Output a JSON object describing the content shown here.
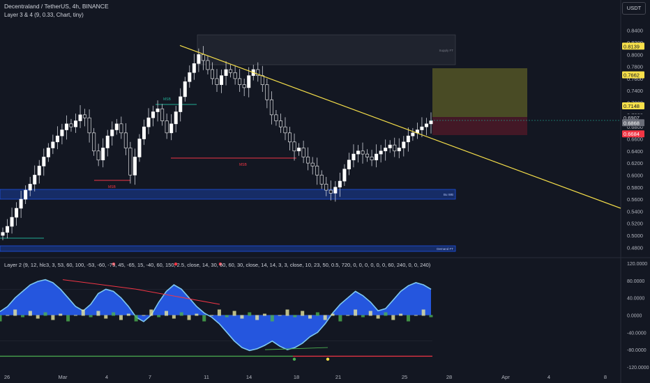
{
  "header": {
    "symbol_line": "Decentraland / TetherUS, 4h, BINANCE",
    "indicator_line": "Layer 3 & 4 (9, 0.33, Chart, tiny)",
    "currency_button": "USDT"
  },
  "lower_pane": {
    "label": "Layer 2 (9, 12, hlc3, 3, 53, 60, 100, -53, -60, -75, 45, -65, 15, -40, 60, 150, 2.5, close, 14, 30, 60, 60, 30, close, 14, 14, 3, 3, close, 10, 23, 50, 0.5, 720, 0, 0, 0, 0, 0, 0, 60, 240, 0, 0, 240)"
  },
  "price_axis": {
    "ticks": [
      "0.8400",
      "0.8200",
      "0.8000",
      "0.7800",
      "0.7600",
      "0.7400",
      "0.7200",
      "0.7000",
      "0.6800",
      "0.6600",
      "0.6400",
      "0.6200",
      "0.6000",
      "0.5800",
      "0.5600",
      "0.5400",
      "0.5200",
      "0.5000",
      "0.4800"
    ],
    "labels": [
      {
        "text": "0.8139",
        "bg": "#f7e04a",
        "fg": "#131722"
      },
      {
        "text": "0.7662",
        "bg": "#f7e04a",
        "fg": "#131722"
      },
      {
        "text": "0.7148",
        "bg": "#f7e04a",
        "fg": "#131722"
      },
      {
        "text": "0.6907",
        "bg": "#131722",
        "fg": "#d1d4dc"
      },
      {
        "text": "01:13:11",
        "bg": "#131722",
        "fg": "#d1d4dc"
      },
      {
        "text": "0.6868",
        "bg": "#6a6d78",
        "fg": "#ffffff"
      },
      {
        "text": "0.6684",
        "bg": "#f23645",
        "fg": "#ffffff"
      }
    ]
  },
  "osc_axis": {
    "ticks": [
      "120.0000",
      "80.0000",
      "40.0000",
      "0.0000",
      "-40.0000",
      "-80.0000",
      "-120.0000"
    ]
  },
  "time_axis": {
    "ticks": [
      "26",
      "Mar",
      "4",
      "7",
      "11",
      "14",
      "18",
      "21",
      "25",
      "28",
      "Apr",
      "4",
      "8"
    ]
  },
  "annotations": {
    "msb_labels": [
      "MSB",
      "MSB",
      "MSB"
    ],
    "zone_supply": "Supply FT",
    "zone_demand": "Bu WB",
    "zone_demand_low": "Demand FT"
  },
  "colors": {
    "background": "#131722",
    "up_candle": "#ffffff",
    "down_candle": "#ffffff",
    "trendline": "#f7e04a",
    "msb_green": "#22ab94",
    "msb_red": "#f23645",
    "demand_zone": "#1e53e5",
    "osc_blue": "#2962ff",
    "osc_light": "#7ec8f0",
    "osc_green": "#4caf50",
    "osc_yellow": "#e7e6a0"
  },
  "chart_data": [
    {
      "type": "candlestick",
      "title": "Decentraland / TetherUS, 4h, BINANCE",
      "ylim": [
        0.47,
        0.85
      ],
      "x_start_label": "26",
      "approx_closes": [
        0.505,
        0.515,
        0.53,
        0.545,
        0.56,
        0.575,
        0.585,
        0.6,
        0.615,
        0.63,
        0.645,
        0.655,
        0.665,
        0.675,
        0.685,
        0.68,
        0.69,
        0.7,
        0.695,
        0.67,
        0.64,
        0.625,
        0.645,
        0.665,
        0.675,
        0.685,
        0.67,
        0.645,
        0.6,
        0.63,
        0.66,
        0.68,
        0.695,
        0.705,
        0.71,
        0.69,
        0.67,
        0.685,
        0.705,
        0.73,
        0.755,
        0.77,
        0.785,
        0.8,
        0.79,
        0.775,
        0.76,
        0.75,
        0.765,
        0.775,
        0.77,
        0.76,
        0.75,
        0.745,
        0.765,
        0.775,
        0.765,
        0.75,
        0.725,
        0.7,
        0.69,
        0.68,
        0.67,
        0.655,
        0.64,
        0.645,
        0.63,
        0.62,
        0.615,
        0.6,
        0.585,
        0.575,
        0.57,
        0.58,
        0.59,
        0.61,
        0.625,
        0.635,
        0.64,
        0.635,
        0.63,
        0.625,
        0.635,
        0.64,
        0.645,
        0.65,
        0.64,
        0.645,
        0.655,
        0.665,
        0.67,
        0.675,
        0.68,
        0.685,
        0.69
      ],
      "last_price": 0.6907,
      "trendline": {
        "from": {
          "x": "27 Feb",
          "y": 0.815
        },
        "to": {
          "x": "8 Apr",
          "y": 0.545
        }
      }
    },
    {
      "type": "area",
      "title": "Layer 2",
      "ylim": [
        -120,
        120
      ],
      "series": [
        {
          "name": "",
          "approx_values": [
            8,
            20,
            40,
            55,
            70,
            78,
            82,
            75,
            60,
            40,
            20,
            10,
            25,
            50,
            60,
            55,
            40,
            20,
            -5,
            -15,
            0,
            30,
            55,
            70,
            60,
            40,
            20,
            5,
            -5,
            -20,
            -40,
            -60,
            -75,
            -82,
            -78,
            -70,
            -60,
            -72,
            -80,
            -75,
            -65,
            -50,
            -40,
            -20,
            5,
            25,
            40,
            55,
            45,
            30,
            10,
            15,
            35,
            55,
            68,
            75,
            70,
            60
          ]
        }
      ]
    }
  ]
}
